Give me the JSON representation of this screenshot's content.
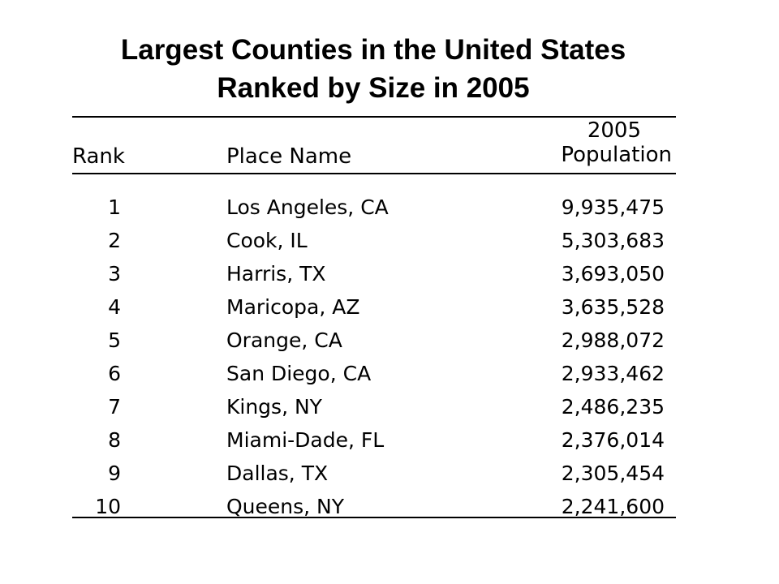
{
  "title": {
    "line1": "Largest Counties in the United States",
    "line2": "Ranked by Size in 2005"
  },
  "table": {
    "headers": {
      "rank": "Rank",
      "place": "Place Name",
      "population_line1": "2005",
      "population_line2": "Population"
    },
    "rows": [
      {
        "rank": "1",
        "place": "Los Angeles, CA",
        "population": "9,935,475"
      },
      {
        "rank": "2",
        "place": "Cook, IL",
        "population": "5,303,683"
      },
      {
        "rank": "3",
        "place": "Harris, TX",
        "population": "3,693,050"
      },
      {
        "rank": "4",
        "place": "Maricopa, AZ",
        "population": "3,635,528"
      },
      {
        "rank": "5",
        "place": "Orange, CA",
        "population": "2,988,072"
      },
      {
        "rank": "6",
        "place": "San Diego, CA",
        "population": "2,933,462"
      },
      {
        "rank": "7",
        "place": "Kings, NY",
        "population": "2,486,235"
      },
      {
        "rank": "8",
        "place": "Miami-Dade, FL",
        "population": "2,376,014"
      },
      {
        "rank": "9",
        "place": "Dallas, TX",
        "population": "2,305,454"
      },
      {
        "rank": "10",
        "place": "Queens, NY",
        "population": "2,241,600"
      }
    ]
  },
  "chart_data": {
    "type": "table",
    "title": "Largest Counties in the United States Ranked by Size in 2005",
    "columns": [
      "Rank",
      "Place Name",
      "2005 Population"
    ],
    "categories": [
      "Los Angeles, CA",
      "Cook, IL",
      "Harris, TX",
      "Maricopa, AZ",
      "Orange, CA",
      "San Diego, CA",
      "Kings, NY",
      "Miami-Dade, FL",
      "Dallas, TX",
      "Queens, NY"
    ],
    "ranks": [
      1,
      2,
      3,
      4,
      5,
      6,
      7,
      8,
      9,
      10
    ],
    "values": [
      9935475,
      5303683,
      3693050,
      3635528,
      2988072,
      2933462,
      2486235,
      2376014,
      2305454,
      2241600
    ]
  }
}
